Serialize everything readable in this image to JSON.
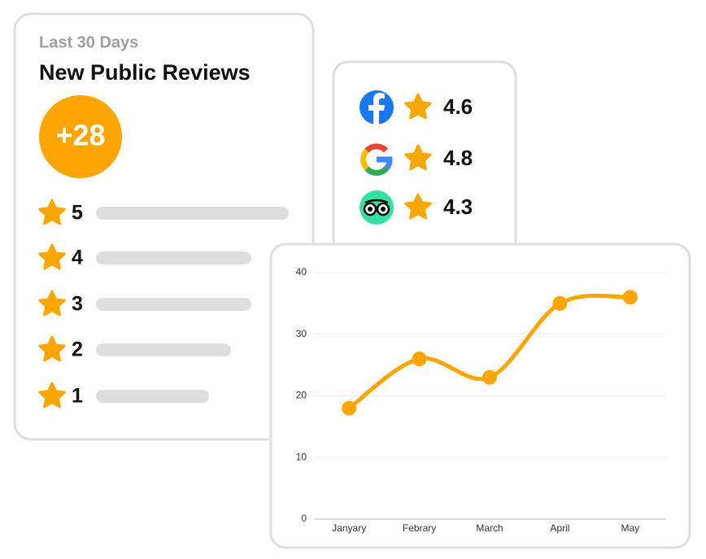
{
  "reviews_card": {
    "subtitle": "Last 30 Days",
    "title": "New Public Reviews",
    "badge": "+28",
    "star_rows": [
      "5",
      "4",
      "3",
      "2",
      "1"
    ]
  },
  "ratings_card": {
    "ratings": [
      4.6,
      4.8,
      4.3
    ]
  },
  "chart_data": {
    "type": "line",
    "categories": [
      "Janyary",
      "Febrary",
      "March",
      "April",
      "May"
    ],
    "values": [
      18,
      26,
      23,
      35,
      36
    ],
    "color": "#FFA500",
    "ylim": [
      0,
      40
    ],
    "yticks": [
      0,
      10,
      20,
      30,
      40
    ],
    "grid": true
  }
}
